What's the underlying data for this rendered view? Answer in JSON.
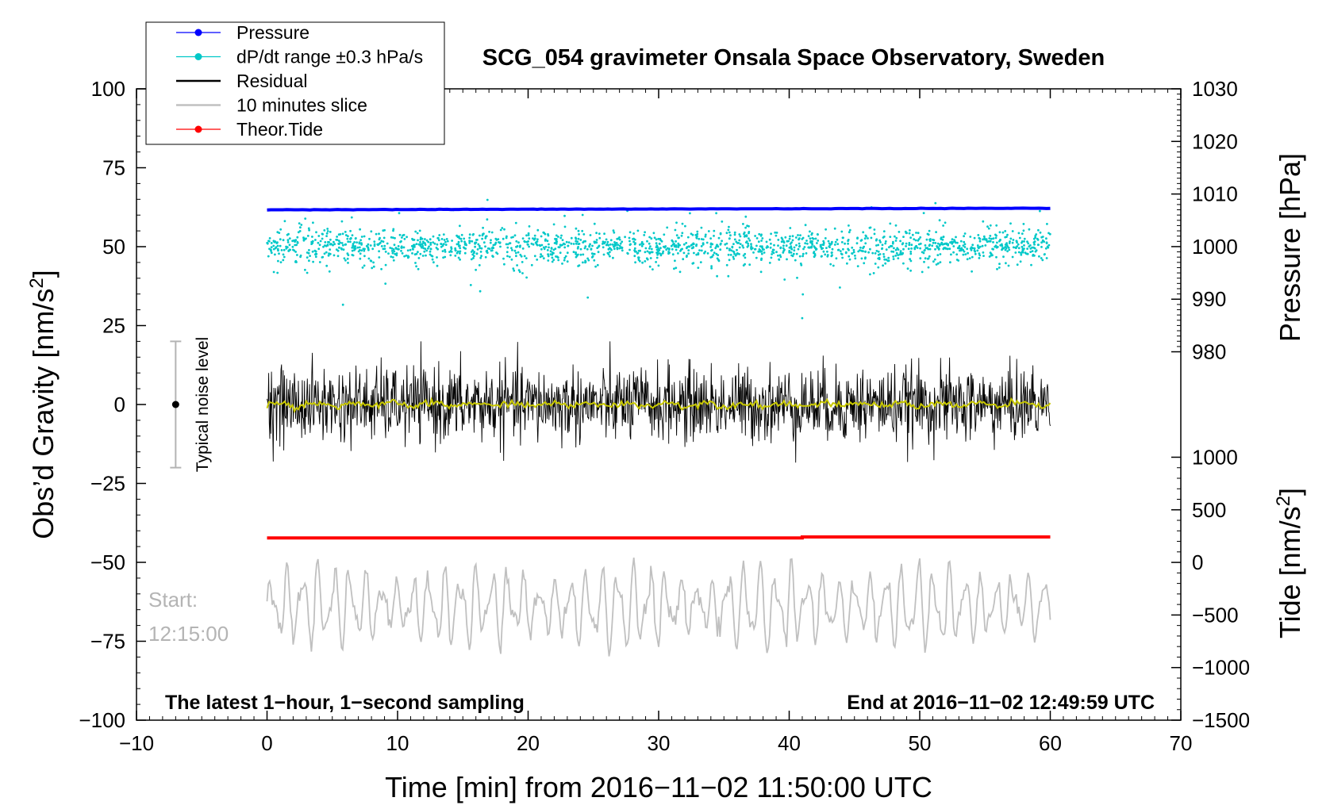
{
  "chart_data": {
    "type": "scatter",
    "title": "SCG_054 gravimeter Onsala Space Observatory, Sweden",
    "xlabel": "Time [min] from 2016−11−02 11:50:00 UTC",
    "ylabel_left": "Obs’d Gravity [nm/s",
    "ylabel_left_sup": "2",
    "ylabel_left_end": "]",
    "ylabel_right_pressure": "Pressure [hPa]",
    "ylabel_right_tide": "Tide [nm/s",
    "ylabel_right_tide_sup": "2",
    "ylabel_right_tide_end": "]",
    "xlim": [
      -10,
      70
    ],
    "ylim": [
      -100,
      100
    ],
    "x_ticks": [
      -10,
      0,
      10,
      20,
      30,
      40,
      50,
      60,
      70
    ],
    "x_tick_labels": [
      "−10",
      "0",
      "10",
      "20",
      "30",
      "40",
      "50",
      "60",
      "70"
    ],
    "y_ticks": [
      100,
      75,
      50,
      25,
      0,
      -25,
      -50,
      -75,
      -100
    ],
    "y_tick_labels": [
      "100",
      "75",
      "50",
      "25",
      "0",
      "−25",
      "−50",
      "−75",
      "−100"
    ],
    "pressure_axis": {
      "ticks": [
        1030,
        1020,
        1010,
        1000,
        990,
        980
      ],
      "tick_labels": [
        "1030",
        "1020",
        "1010",
        "1000",
        "990",
        "980"
      ],
      "gravity_at_1030": 100,
      "gravity_at_980": 16.7
    },
    "tide_axis": {
      "ticks": [
        1000,
        500,
        0,
        -500,
        -1000,
        -1500
      ],
      "tick_labels": [
        "1000",
        "500",
        "0",
        "−500",
        "−1000",
        "−1500"
      ],
      "gravity_at_1000": -16.7,
      "gravity_at_-1500": -100
    },
    "legend": {
      "placement": "top-left",
      "entries": [
        {
          "label": "Pressure",
          "color": "#0000ff",
          "style": "line-dot"
        },
        {
          "label": "dP/dt range ±0.3 hPa/s",
          "color": "#00c8c8",
          "style": "line-dot"
        },
        {
          "label": "Residual",
          "color": "#000000",
          "style": "line"
        },
        {
          "label": "10 minutes slice",
          "color": "#c0c0c0",
          "style": "line"
        },
        {
          "label": "Theor.Tide",
          "color": "#ff0000",
          "style": "line-dot"
        }
      ]
    },
    "series": [
      {
        "name": "Pressure",
        "color": "#0000ff",
        "x_range": [
          0,
          60
        ],
        "value_start_hPa": 1007.0,
        "value_end_hPa": 1007.3
      },
      {
        "name": "dP/dt",
        "color": "#00c8c8",
        "x_range": [
          0,
          60
        ],
        "center": 50,
        "spread": 10
      },
      {
        "name": "Residual",
        "color": "#000000",
        "x_range": [
          0,
          60
        ],
        "center": 0,
        "amplitude": 20
      },
      {
        "name": "Residual smoothed",
        "color": "#c8c800",
        "x_range": [
          0,
          60
        ],
        "center": 0,
        "amplitude": 1
      },
      {
        "name": "Theor.Tide",
        "color": "#ff0000",
        "x_range": [
          0,
          60
        ],
        "value_start_nms2": 233,
        "value_end_nms2": 242
      },
      {
        "name": "10 minutes slice",
        "color": "#c0c0c0",
        "x_range": [
          0,
          60
        ],
        "center": -64,
        "amplitude": 25
      }
    ],
    "noise_bar": {
      "x": -7,
      "center": 0,
      "low": -20,
      "high": 20,
      "label": "Typical noise level"
    },
    "annotations": {
      "start_label": "Start:",
      "start_time": "12:15:00",
      "bottom_left": "The latest 1−hour, 1−second sampling",
      "bottom_right": "End at 2016−11−02 12:49:59 UTC"
    }
  },
  "colors": {
    "pressure": "#0000ff",
    "dpdt": "#00c8c8",
    "residual": "#000000",
    "smoothed": "#c8c800",
    "slice": "#c0c0c0",
    "tide": "#ff0000",
    "noise": "#b4b4b4",
    "start_text": "#b4b4b4"
  }
}
